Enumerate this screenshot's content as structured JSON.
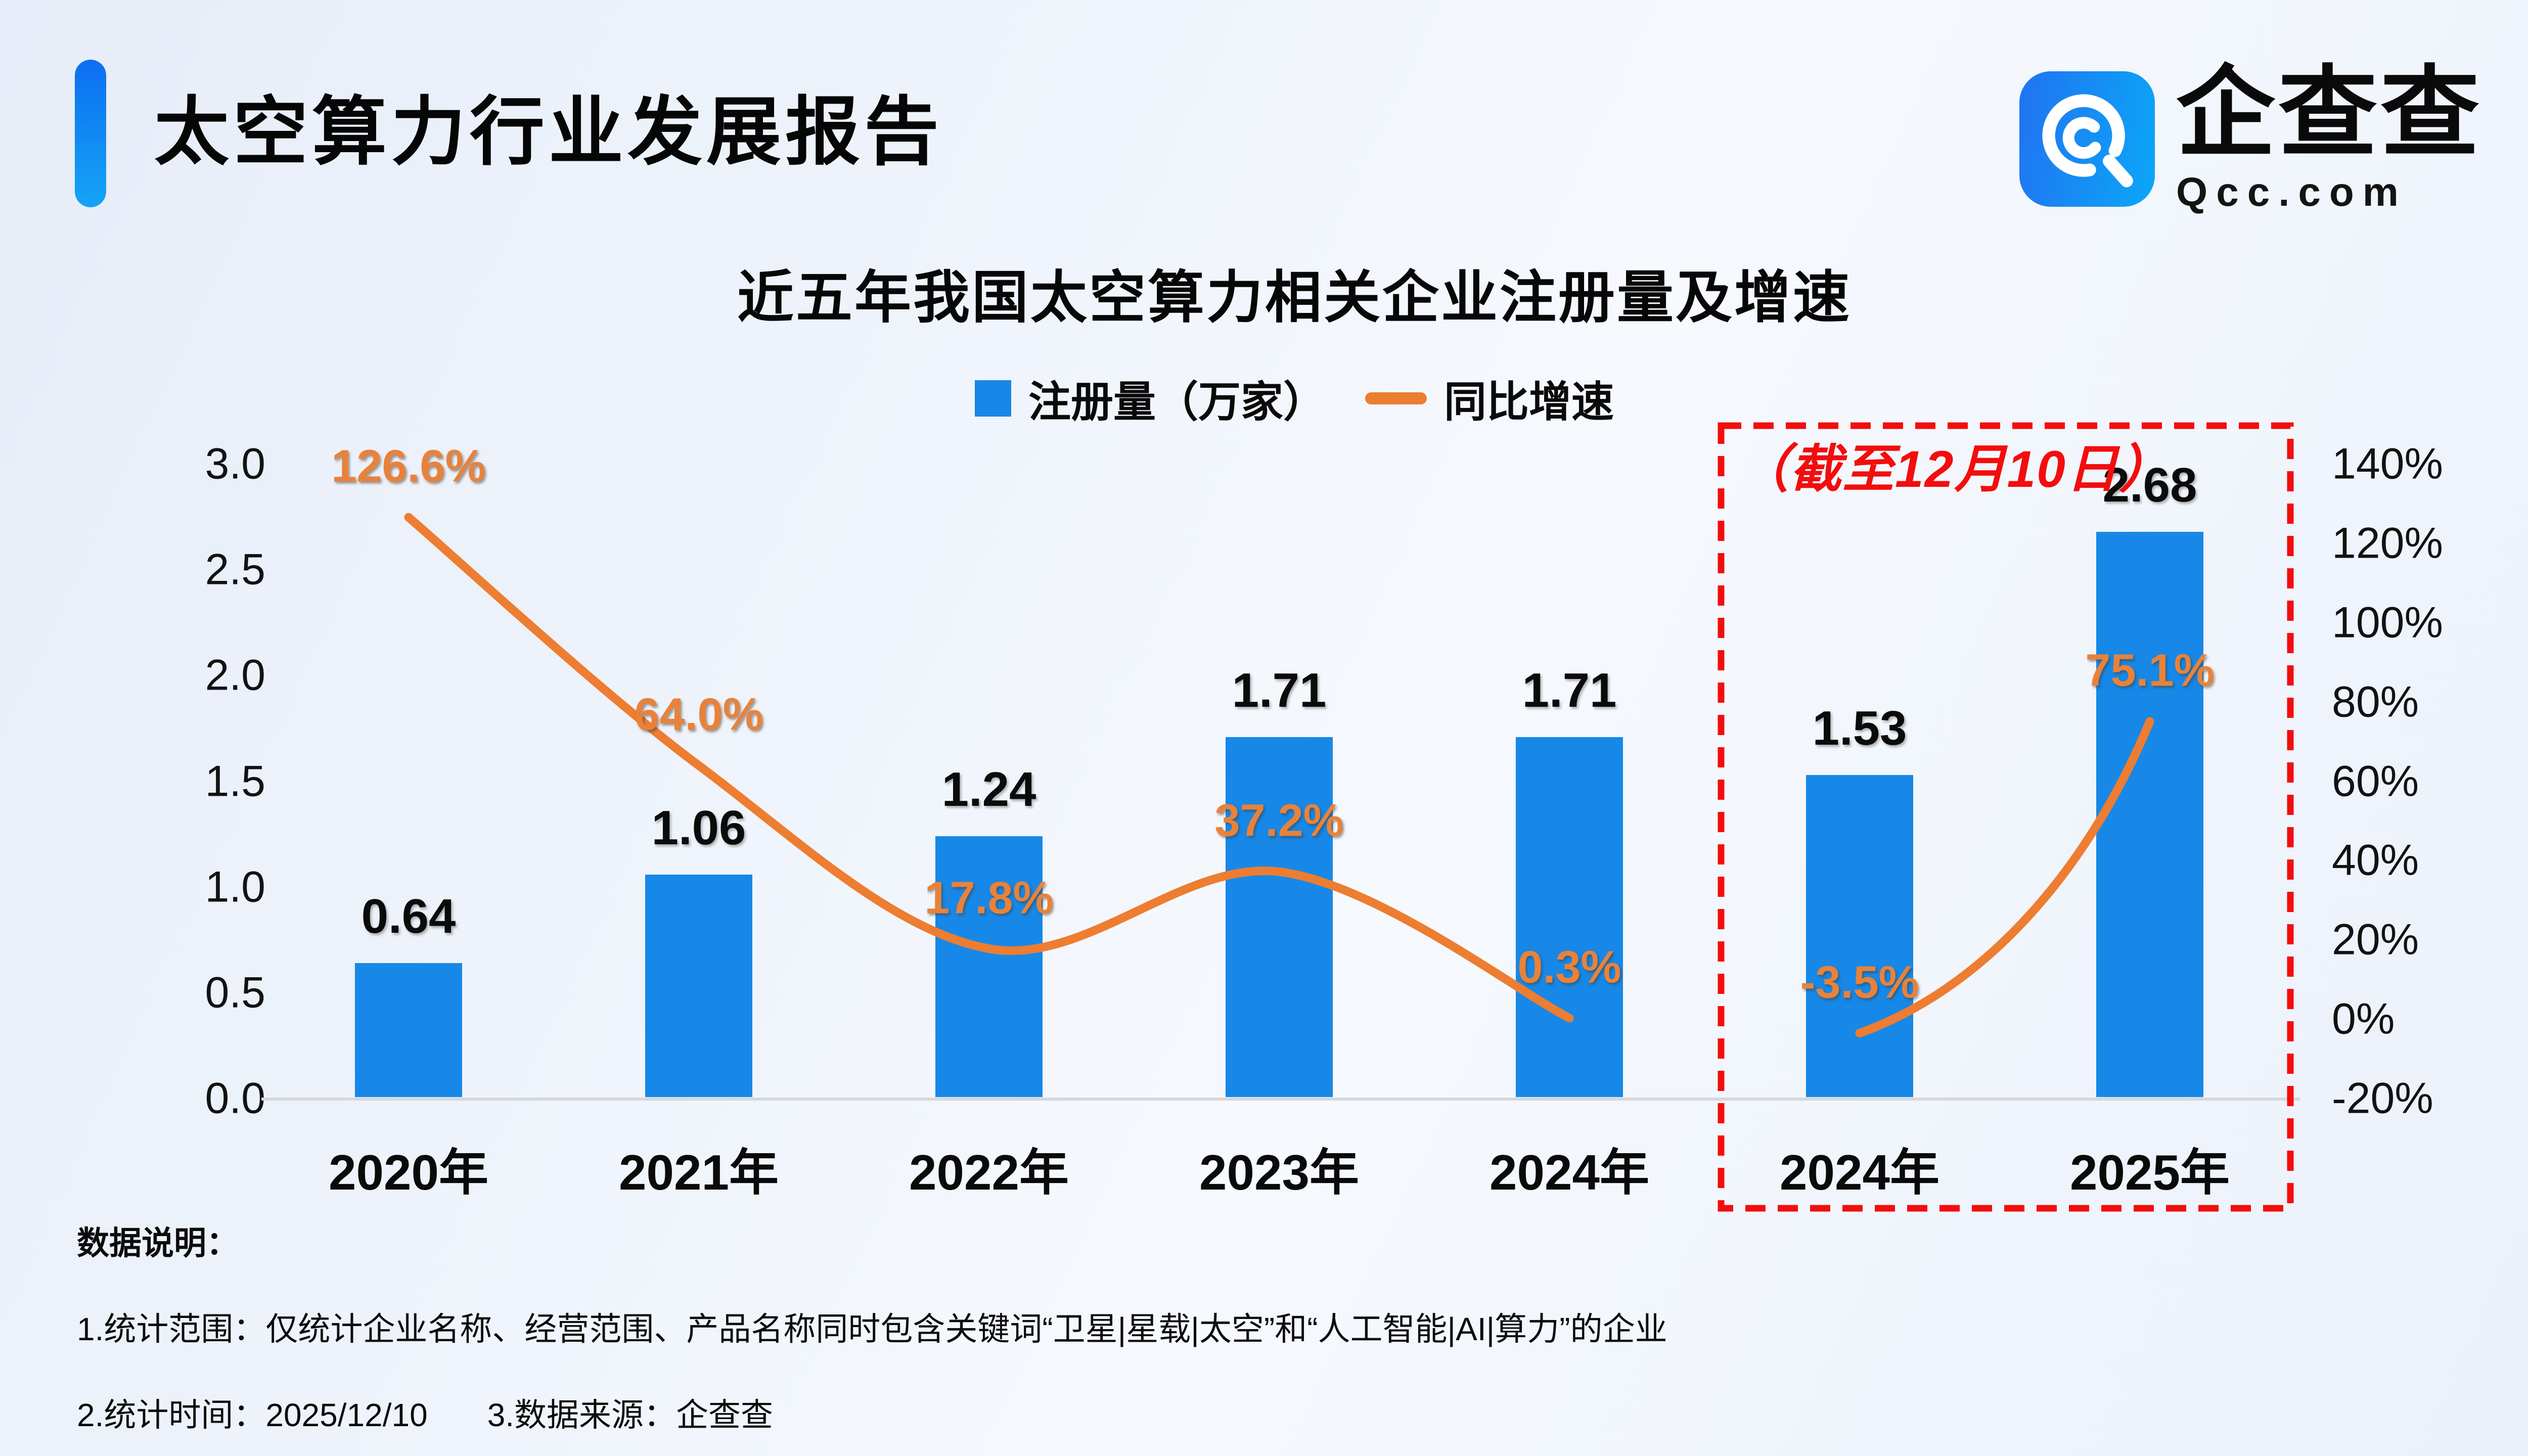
{
  "header": {
    "title": "太空算力行业发展报告",
    "accent_color": "#0d6ef0"
  },
  "logo": {
    "name": "企查查",
    "domain": "Qcc.com",
    "icon": "qcc-spiral-q-icon",
    "icon_color": "#1a8cf5"
  },
  "chart_data": {
    "type": "bar+line",
    "title": "近五年我国太空算力相关企业注册量及增速",
    "categories": [
      "2020年",
      "2021年",
      "2022年",
      "2023年",
      "2024年",
      "2024年",
      "2025年"
    ],
    "series": [
      {
        "name": "注册量（万家）",
        "type": "bar",
        "color": "#1788e7",
        "values": [
          0.64,
          1.06,
          1.24,
          1.71,
          1.71,
          1.53,
          2.68
        ],
        "labels": [
          "0.64",
          "1.06",
          "1.24",
          "1.71",
          "1.71",
          "1.53",
          "2.68"
        ]
      },
      {
        "name": "同比增速",
        "type": "line",
        "color": "#ed7d31",
        "values": [
          126.6,
          64.0,
          17.8,
          37.2,
          0.3,
          -3.5,
          75.1
        ],
        "labels": [
          "126.6%",
          "64.0%",
          "17.8%",
          "37.2%",
          "0.3%",
          "-3.5%",
          "75.1%"
        ],
        "segments": [
          [
            0,
            4
          ],
          [
            5,
            6
          ]
        ]
      }
    ],
    "left_axis": {
      "ticks": [
        "3.0",
        "2.5",
        "2.0",
        "1.5",
        "1.0",
        "0.5",
        "0.0"
      ],
      "min": 0,
      "max": 3
    },
    "right_axis": {
      "ticks": [
        "140%",
        "120%",
        "100%",
        "80%",
        "60%",
        "40%",
        "20%",
        "0%",
        "-20%"
      ],
      "min": -20,
      "max": 140
    },
    "grid": "off",
    "legend_position": "top-center",
    "annotation_box": {
      "label": "（截至12月10日）",
      "from_index": 5,
      "to_index": 6,
      "color": "#f30d0d"
    }
  },
  "legend": [
    {
      "label": "注册量（万家）",
      "type": "bar",
      "color": "#1788e7"
    },
    {
      "label": "同比增速",
      "type": "line",
      "color": "#ed7d31"
    }
  ],
  "notes": {
    "heading": "数据说明：",
    "line1": "1.统计范围：仅统计企业名称、经营范围、产品名称同时包含关键词“卫星|星载|太空”和“人工智能|AI|算力”的企业",
    "line2": "2.统计时间：2025/12/10",
    "line3": "3.数据来源：企查查"
  }
}
